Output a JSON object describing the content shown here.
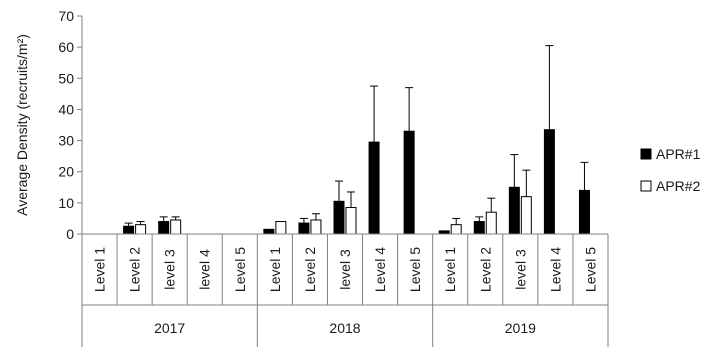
{
  "chart_data": {
    "type": "bar",
    "ylabel": "Average Density (recruits/m²)",
    "ylim": [
      0,
      70
    ],
    "yticks": [
      "0",
      "10",
      "20",
      "30",
      "40",
      "50",
      "60",
      "70"
    ],
    "grid": false,
    "legend_position": "right",
    "groups": [
      {
        "label": "2017",
        "levels": [
          "Level 1",
          "Level 2",
          "level 3",
          "level 4",
          "Level 5"
        ]
      },
      {
        "label": "2018",
        "levels": [
          "Level 1",
          "Level 2",
          "level 3",
          "Level 4",
          "Level 5"
        ]
      },
      {
        "label": "2019",
        "levels": [
          "Level 1",
          "Level 2",
          "level 3",
          "Level 4",
          "Level 5"
        ]
      }
    ],
    "series": [
      {
        "name": "APR#1",
        "color": "#000000",
        "values": [
          null,
          2.5,
          4,
          null,
          null,
          1.5,
          3.5,
          10.5,
          29.5,
          33,
          1,
          4,
          15,
          33.5,
          14
        ],
        "errors": [
          null,
          1,
          1.5,
          null,
          null,
          0,
          1.5,
          6.5,
          18,
          14,
          0,
          1.5,
          10.5,
          27,
          9
        ]
      },
      {
        "name": "APR#2",
        "color": "#ffffff",
        "values": [
          null,
          3,
          4.5,
          null,
          null,
          4,
          4.5,
          8.5,
          null,
          null,
          3,
          7,
          12,
          null,
          null
        ],
        "errors": [
          null,
          1,
          1,
          null,
          null,
          0,
          2,
          5,
          null,
          null,
          2,
          4.5,
          8.5,
          null,
          null
        ]
      }
    ]
  }
}
